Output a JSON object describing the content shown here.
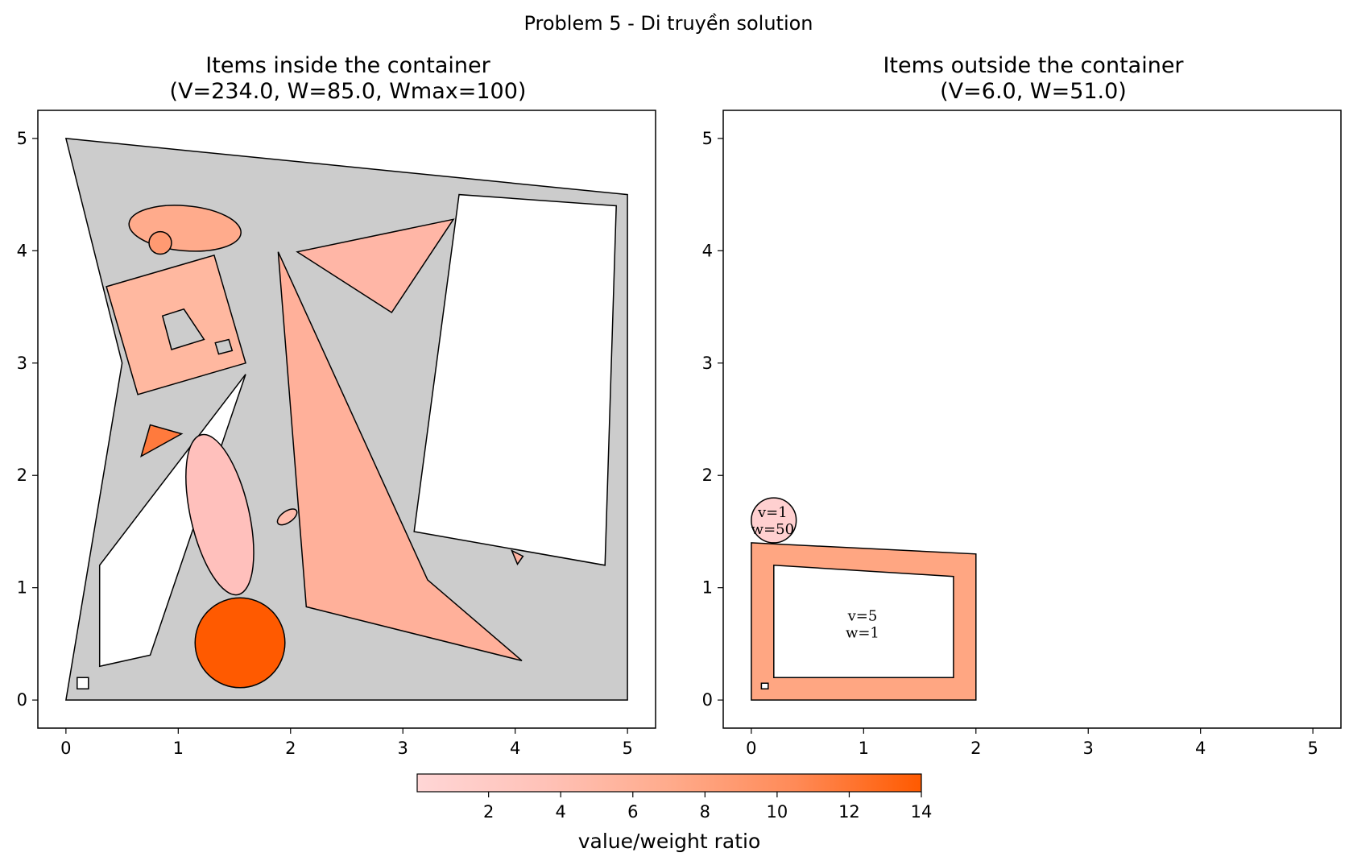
{
  "figure_title": "Problem 5 - Di truyền solution",
  "colors": {
    "background": "#ffffff",
    "container_fill": "#cccccc",
    "edge": "#000000",
    "hole_fill": "#ffffff"
  },
  "colorbar": {
    "label": "value/weight ratio",
    "min": 0.02,
    "max": 14,
    "ticks": [
      2,
      4,
      6,
      8,
      10,
      12,
      14
    ],
    "colors": [
      "#ffd6d6",
      "#ffc2b8",
      "#ffab8c",
      "#ff8a57",
      "#ff5a00"
    ]
  },
  "chart_data": [
    {
      "type": "polygon-packing",
      "title": "Items inside the container",
      "subtitle": "(V=234.0, W=85.0, Wmax=100)",
      "xlim": [
        -0.25,
        5.25
      ],
      "ylim": [
        -0.25,
        5.25
      ],
      "xticks": [
        0,
        1,
        2,
        3,
        4,
        5
      ],
      "yticks": [
        0,
        1,
        2,
        3,
        4,
        5
      ],
      "container": [
        [
          0,
          0
        ],
        [
          5,
          0
        ],
        [
          5,
          4.5
        ],
        [
          0,
          5
        ],
        [
          0.5,
          3
        ]
      ],
      "items": [
        {
          "kind": "polygon",
          "points": [
            [
              3.1,
              1.5
            ],
            [
              3.5,
              4.5
            ],
            [
              4.9,
              4.4
            ],
            [
              4.8,
              1.2
            ]
          ],
          "color": "#ffffff"
        },
        {
          "kind": "polygon",
          "points": [
            [
              0.3,
              0.3
            ],
            [
              0.75,
              0.4
            ],
            [
              1.6,
              2.9
            ],
            [
              0.3,
              1.2
            ]
          ],
          "color": "#ffffff"
        },
        {
          "kind": "ellipse",
          "cx": 1.06,
          "cy": 4.2,
          "rx": 0.5,
          "ry": 0.2,
          "angle": -5,
          "color": "#ffab8c"
        },
        {
          "kind": "circle",
          "cx": 0.84,
          "cy": 4.07,
          "r": 0.1,
          "color": "#ff9a72"
        },
        {
          "kind": "polygon",
          "points": [
            [
              0.36,
              3.68
            ],
            [
              1.32,
              3.96
            ],
            [
              1.6,
              3.0
            ],
            [
              0.64,
              2.72
            ]
          ],
          "color": "#ffb8a0",
          "holes": [
            [
              [
                0.86,
                3.42
              ],
              [
                1.05,
                3.48
              ],
              [
                1.23,
                3.21
              ],
              [
                0.94,
                3.12
              ]
            ],
            [
              [
                1.36,
                3.08
              ],
              [
                1.48,
                3.11
              ],
              [
                1.45,
                3.21
              ],
              [
                1.33,
                3.18
              ]
            ]
          ]
        },
        {
          "kind": "polygon",
          "points": [
            [
              2.06,
              3.99
            ],
            [
              3.45,
              4.28
            ],
            [
              2.9,
              3.45
            ]
          ],
          "color": "#ffb6a6"
        },
        {
          "kind": "polygon",
          "points": [
            [
              1.89,
              3.99
            ],
            [
              2.14,
              0.83
            ],
            [
              4.06,
              0.35
            ],
            [
              3.22,
              1.07
            ]
          ],
          "color": "#ffb09a"
        },
        {
          "kind": "polygon",
          "points": [
            [
              0.67,
              2.17
            ],
            [
              0.75,
              2.45
            ],
            [
              1.03,
              2.37
            ]
          ],
          "color": "#ff7a3d"
        },
        {
          "kind": "ellipse",
          "cx": 1.37,
          "cy": 1.65,
          "rx": 0.73,
          "ry": 0.26,
          "angle": -77,
          "color": "#ffc0bc"
        },
        {
          "kind": "ellipse",
          "cx": 1.97,
          "cy": 1.63,
          "rx": 0.1,
          "ry": 0.05,
          "angle": 35,
          "color": "#ffbcac"
        },
        {
          "kind": "polygon",
          "points": [
            [
              3.97,
              1.33
            ],
            [
              4.07,
              1.28
            ],
            [
              4.02,
              1.21
            ]
          ],
          "color": "#ffb2a0"
        },
        {
          "kind": "circle",
          "cx": 1.55,
          "cy": 0.51,
          "r": 0.4,
          "color": "#ff5a00"
        },
        {
          "kind": "polygon",
          "points": [
            [
              0.1,
              0.1
            ],
            [
              0.2,
              0.1
            ],
            [
              0.2,
              0.2
            ],
            [
              0.1,
              0.2
            ]
          ],
          "color": "#ffffff"
        }
      ]
    },
    {
      "type": "polygon-packing",
      "title": "Items outside the container",
      "subtitle": "(V=6.0, W=51.0)",
      "xlim": [
        -0.25,
        5.25
      ],
      "ylim": [
        -0.25,
        5.25
      ],
      "xticks": [
        0,
        1,
        2,
        3,
        4,
        5
      ],
      "yticks": [
        0,
        1,
        2,
        3,
        4,
        5
      ],
      "items": [
        {
          "kind": "polygon",
          "points": [
            [
              0,
              0
            ],
            [
              2,
              0
            ],
            [
              2,
              1.3
            ],
            [
              0,
              1.4
            ]
          ],
          "color": "#ffa682",
          "holes": [
            [
              [
                0.2,
                0.2
              ],
              [
                1.8,
                0.2
              ],
              [
                1.8,
                1.1
              ],
              [
                0.2,
                1.2
              ]
            ]
          ],
          "label": [
            "v=5",
            "w=1"
          ],
          "label_at": [
            0.99,
            0.68
          ]
        },
        {
          "kind": "polygon",
          "points": [
            [
              0.09,
              0.1
            ],
            [
              0.15,
              0.1
            ],
            [
              0.15,
              0.15
            ],
            [
              0.09,
              0.15
            ]
          ],
          "color": "#ffffff"
        },
        {
          "kind": "circle",
          "cx": 0.2,
          "cy": 1.6,
          "r": 0.2,
          "color": "#ffd0d0",
          "label": [
            "v=1",
            "w=50"
          ],
          "label_at": [
            0.19,
            1.6
          ]
        }
      ]
    }
  ]
}
